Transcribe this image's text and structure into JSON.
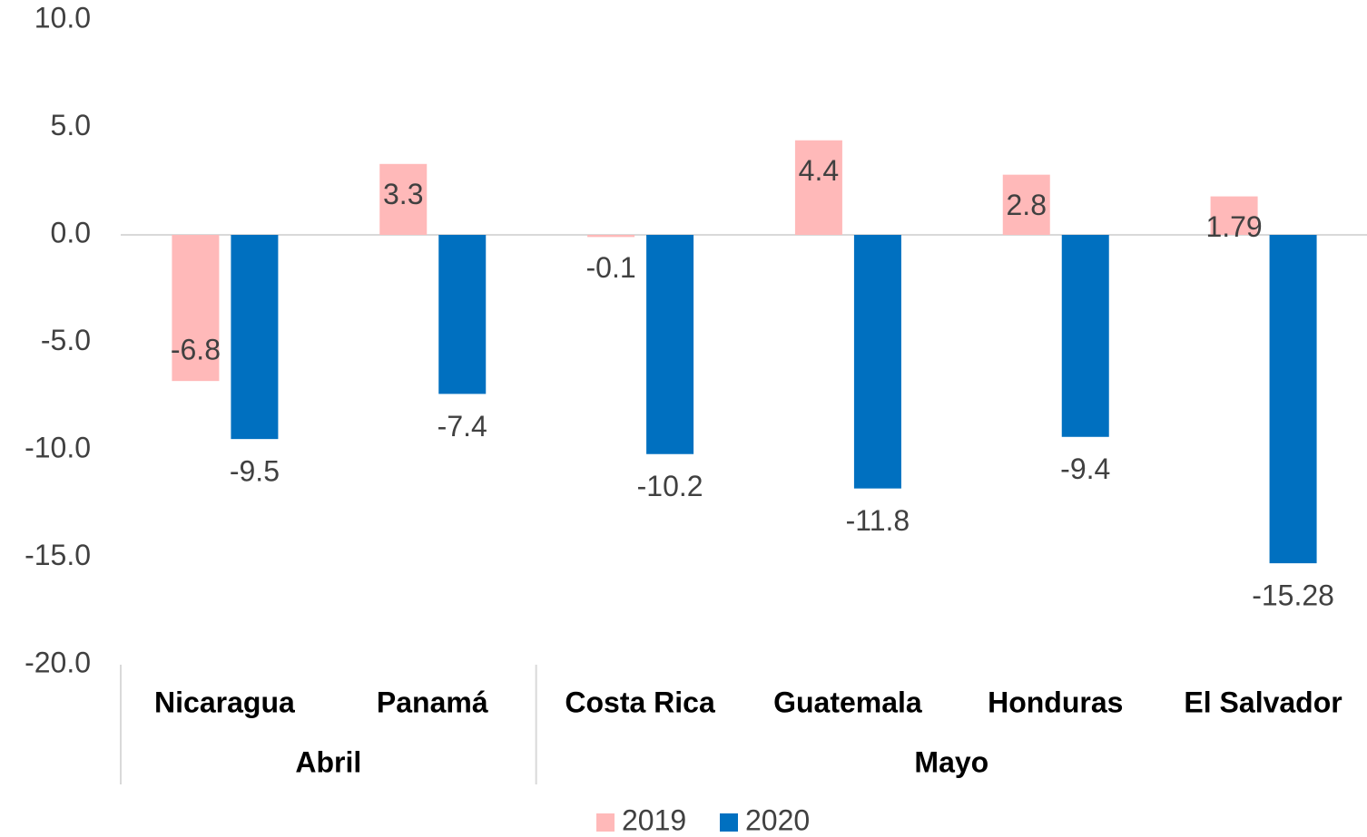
{
  "chart_data": {
    "type": "bar",
    "categories": [
      "Nicaragua",
      "Panamá",
      "Costa Rica",
      "Guatemala",
      "Honduras",
      "El Salvador"
    ],
    "groups": [
      {
        "label": "Abril",
        "count": 2
      },
      {
        "label": "Mayo",
        "count": 4
      }
    ],
    "series": [
      {
        "name": "2019",
        "color": "#ffb9b9",
        "values": [
          -6.8,
          3.3,
          -0.1,
          4.4,
          2.8,
          1.79
        ]
      },
      {
        "name": "2020",
        "color": "#0070c0",
        "values": [
          -9.5,
          -7.4,
          -10.2,
          -11.8,
          -9.4,
          -15.28
        ]
      }
    ],
    "ylim": [
      -20,
      10
    ],
    "yticks": [
      {
        "value": -20,
        "label": "-20.0"
      },
      {
        "value": -15,
        "label": "-15.0"
      },
      {
        "value": -10,
        "label": "-10.0"
      },
      {
        "value": -5,
        "label": "-5.0"
      },
      {
        "value": 0,
        "label": "0.0"
      },
      {
        "value": 5,
        "label": "5.0"
      },
      {
        "value": 10,
        "label": "10.0"
      }
    ],
    "grid": false
  }
}
